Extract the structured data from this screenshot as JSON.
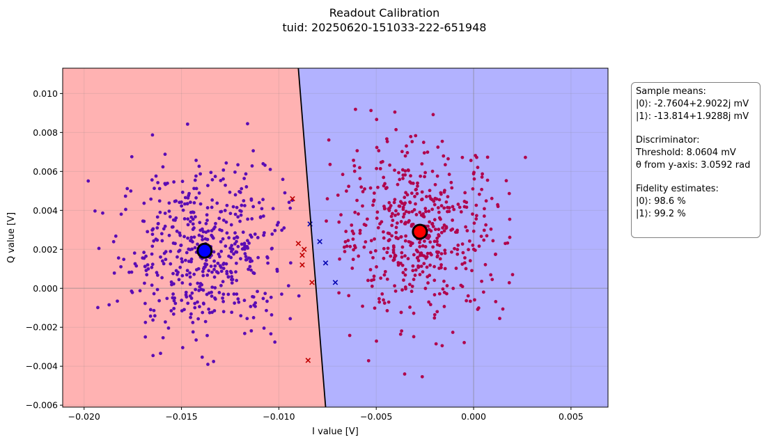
{
  "chart_data": {
    "type": "scatter",
    "title": "Readout Calibration",
    "subtitle": "tuid: 20250620-151033-222-651948",
    "xlabel": "I value [V]",
    "ylabel": "Q value [V]",
    "xlim": [
      -0.0211,
      0.0069
    ],
    "ylim": [
      -0.0061,
      0.0113
    ],
    "xticks": [
      -0.02,
      -0.015,
      -0.01,
      -0.005,
      0.0,
      0.005
    ],
    "xtick_labels": [
      "−0.020",
      "−0.015",
      "−0.010",
      "−0.005",
      "0.000",
      "0.005"
    ],
    "yticks": [
      -0.006,
      -0.004,
      -0.002,
      0.0,
      0.002,
      0.004,
      0.006,
      0.008,
      0.01
    ],
    "ytick_labels": [
      "−0.006",
      "−0.004",
      "−0.002",
      "0.000",
      "0.002",
      "0.004",
      "0.006",
      "0.008",
      "0.010"
    ],
    "grid": true,
    "colors": {
      "region_state0": "#ffb2b2",
      "region_state1": "#b2b2ff",
      "points_state0": "#5b0cb4",
      "points_state1": "#b0054d",
      "misclassified_state0": "#c00000",
      "misclassified_state1": "#0000b0",
      "mean_state0": "#ff0000",
      "mean_state1": "#0000ff",
      "boundary": "#000000"
    },
    "decision_boundary": {
      "points": [
        [
          -0.009,
          0.0113
        ],
        [
          -0.0076,
          -0.0061
        ]
      ]
    },
    "clusters": [
      {
        "state": "|0>",
        "center": [
          -0.0028,
          0.0029
        ],
        "spread": 0.0022,
        "count": 520
      },
      {
        "state": "|1>",
        "center": [
          -0.0138,
          0.0019
        ],
        "spread": 0.0022,
        "count": 520
      }
    ],
    "means": [
      {
        "state": "|0>",
        "x": -0.0027604,
        "y": 0.0029022
      },
      {
        "state": "|1>",
        "x": -0.013814,
        "y": 0.0019288
      }
    ],
    "misclassified": [
      {
        "state": "|0>",
        "points": [
          [
            -0.0093,
            0.0046
          ],
          [
            -0.009,
            0.0023
          ],
          [
            -0.0088,
            0.0017
          ],
          [
            -0.0088,
            0.0012
          ],
          [
            -0.0087,
            0.002
          ],
          [
            -0.0083,
            0.0003
          ],
          [
            -0.0085,
            -0.0037
          ]
        ]
      },
      {
        "state": "|1>",
        "points": [
          [
            -0.0084,
            0.0033
          ],
          [
            -0.0079,
            0.0024
          ],
          [
            -0.0076,
            0.0013
          ],
          [
            -0.0071,
            0.0003
          ]
        ]
      }
    ]
  },
  "info": {
    "lines": [
      "Sample means:",
      "|0⟩: -2.7604+2.9022j mV",
      "|1⟩: -13.814+1.9288j mV",
      "",
      "Discriminator:",
      "Threshold: 8.0604 mV",
      "θ from y-axis: 3.0592 rad",
      "",
      "Fidelity estimates:",
      "|0⟩: 98.6 %",
      "|1⟩: 99.2 %"
    ]
  }
}
